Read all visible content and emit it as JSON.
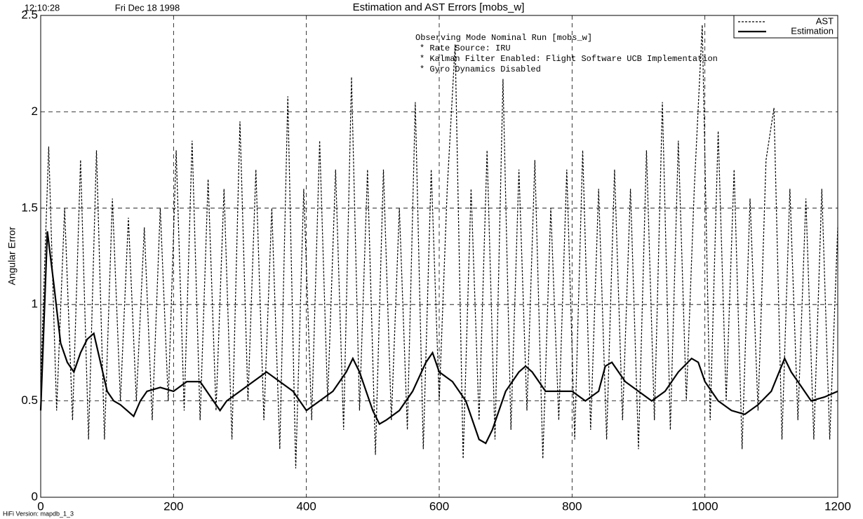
{
  "header": {
    "time": "12:10:28",
    "date": "Fri Dec 18 1998",
    "version": "HiFi Version: mapdb_1_3"
  },
  "chart_data": {
    "type": "line",
    "title": "Estimation and AST Errors [mobs_w]",
    "y_label": "Angular Error",
    "annotations": [
      "Observing Mode Nominal Run [mobs_w]",
      "* Rate Source: IRU",
      "* Kalman Filter Enabled: Flight Software UCB Implementation",
      "* Gyro Dynamics Disabled"
    ],
    "xlim": [
      0,
      1200
    ],
    "xticks": [
      0,
      200,
      400,
      600,
      800,
      1000,
      1200
    ],
    "ylim": [
      0,
      2.5
    ],
    "yticks": [
      0,
      0.5,
      1,
      1.5,
      2,
      2.5
    ],
    "grid": true,
    "legend": "upper right",
    "series": [
      {
        "name": "AST",
        "color": "#000000",
        "dash": true,
        "x": [
          0,
          12,
          24,
          36,
          48,
          60,
          72,
          84,
          96,
          108,
          120,
          132,
          144,
          156,
          168,
          180,
          192,
          204,
          216,
          228,
          240,
          252,
          264,
          276,
          288,
          300,
          312,
          324,
          336,
          348,
          360,
          372,
          384,
          396,
          408,
          420,
          432,
          444,
          456,
          468,
          480,
          492,
          504,
          516,
          528,
          540,
          552,
          564,
          576,
          588,
          600,
          612,
          624,
          636,
          648,
          660,
          672,
          684,
          696,
          708,
          720,
          732,
          744,
          756,
          768,
          780,
          792,
          804,
          816,
          828,
          840,
          852,
          864,
          876,
          888,
          900,
          912,
          924,
          936,
          948,
          960,
          972,
          984,
          996,
          1008,
          1020,
          1032,
          1044,
          1056,
          1068,
          1080,
          1092,
          1104,
          1116,
          1128,
          1140,
          1152,
          1164,
          1176,
          1188,
          1200
        ],
        "values": [
          0.6,
          1.82,
          0.45,
          1.5,
          0.4,
          1.75,
          0.3,
          1.8,
          0.3,
          1.55,
          0.5,
          1.45,
          0.5,
          1.4,
          0.4,
          1.5,
          0.5,
          1.8,
          0.45,
          1.85,
          0.4,
          1.65,
          0.45,
          1.6,
          0.3,
          1.95,
          0.5,
          1.7,
          0.4,
          1.5,
          0.25,
          2.08,
          0.15,
          1.6,
          0.4,
          1.85,
          0.5,
          1.7,
          0.35,
          2.18,
          0.45,
          1.7,
          0.22,
          1.7,
          0.4,
          1.5,
          0.35,
          2.05,
          0.25,
          1.7,
          0.5,
          1.6,
          2.35,
          0.2,
          1.6,
          0.4,
          1.8,
          0.3,
          2.17,
          0.35,
          1.7,
          0.45,
          1.75,
          0.2,
          1.5,
          0.4,
          1.7,
          0.3,
          1.8,
          0.35,
          1.6,
          0.3,
          1.7,
          0.4,
          1.6,
          0.25,
          1.8,
          0.4,
          2.05,
          0.35,
          1.85,
          0.5,
          1.6,
          2.45,
          0.4,
          1.9,
          0.5,
          1.7,
          0.25,
          1.55,
          0.45,
          1.75,
          2.02,
          0.3,
          1.6,
          0.4,
          1.55,
          0.3,
          1.6,
          0.3,
          1.4
        ]
      },
      {
        "name": "Estimation",
        "color": "#000000",
        "dash": false,
        "x": [
          0,
          10,
          20,
          30,
          40,
          50,
          60,
          70,
          80,
          90,
          100,
          110,
          120,
          130,
          140,
          150,
          160,
          180,
          200,
          220,
          240,
          260,
          270,
          280,
          300,
          320,
          340,
          360,
          380,
          400,
          420,
          440,
          460,
          470,
          480,
          500,
          510,
          520,
          540,
          560,
          580,
          590,
          600,
          620,
          640,
          660,
          670,
          680,
          700,
          720,
          730,
          740,
          760,
          780,
          800,
          820,
          840,
          850,
          860,
          880,
          900,
          920,
          940,
          960,
          980,
          990,
          1000,
          1020,
          1040,
          1060,
          1080,
          1100,
          1120,
          1130,
          1140,
          1160,
          1180,
          1200
        ],
        "values": [
          0.45,
          1.38,
          1.1,
          0.8,
          0.7,
          0.65,
          0.75,
          0.82,
          0.85,
          0.7,
          0.55,
          0.5,
          0.48,
          0.45,
          0.42,
          0.5,
          0.55,
          0.57,
          0.55,
          0.6,
          0.6,
          0.5,
          0.45,
          0.5,
          0.55,
          0.6,
          0.65,
          0.6,
          0.55,
          0.45,
          0.5,
          0.55,
          0.65,
          0.72,
          0.65,
          0.45,
          0.38,
          0.4,
          0.45,
          0.55,
          0.7,
          0.75,
          0.65,
          0.6,
          0.5,
          0.3,
          0.28,
          0.35,
          0.55,
          0.65,
          0.68,
          0.65,
          0.55,
          0.55,
          0.55,
          0.5,
          0.55,
          0.68,
          0.7,
          0.6,
          0.55,
          0.5,
          0.55,
          0.65,
          0.72,
          0.7,
          0.6,
          0.5,
          0.45,
          0.43,
          0.48,
          0.55,
          0.72,
          0.65,
          0.6,
          0.5,
          0.52,
          0.55
        ]
      }
    ]
  }
}
